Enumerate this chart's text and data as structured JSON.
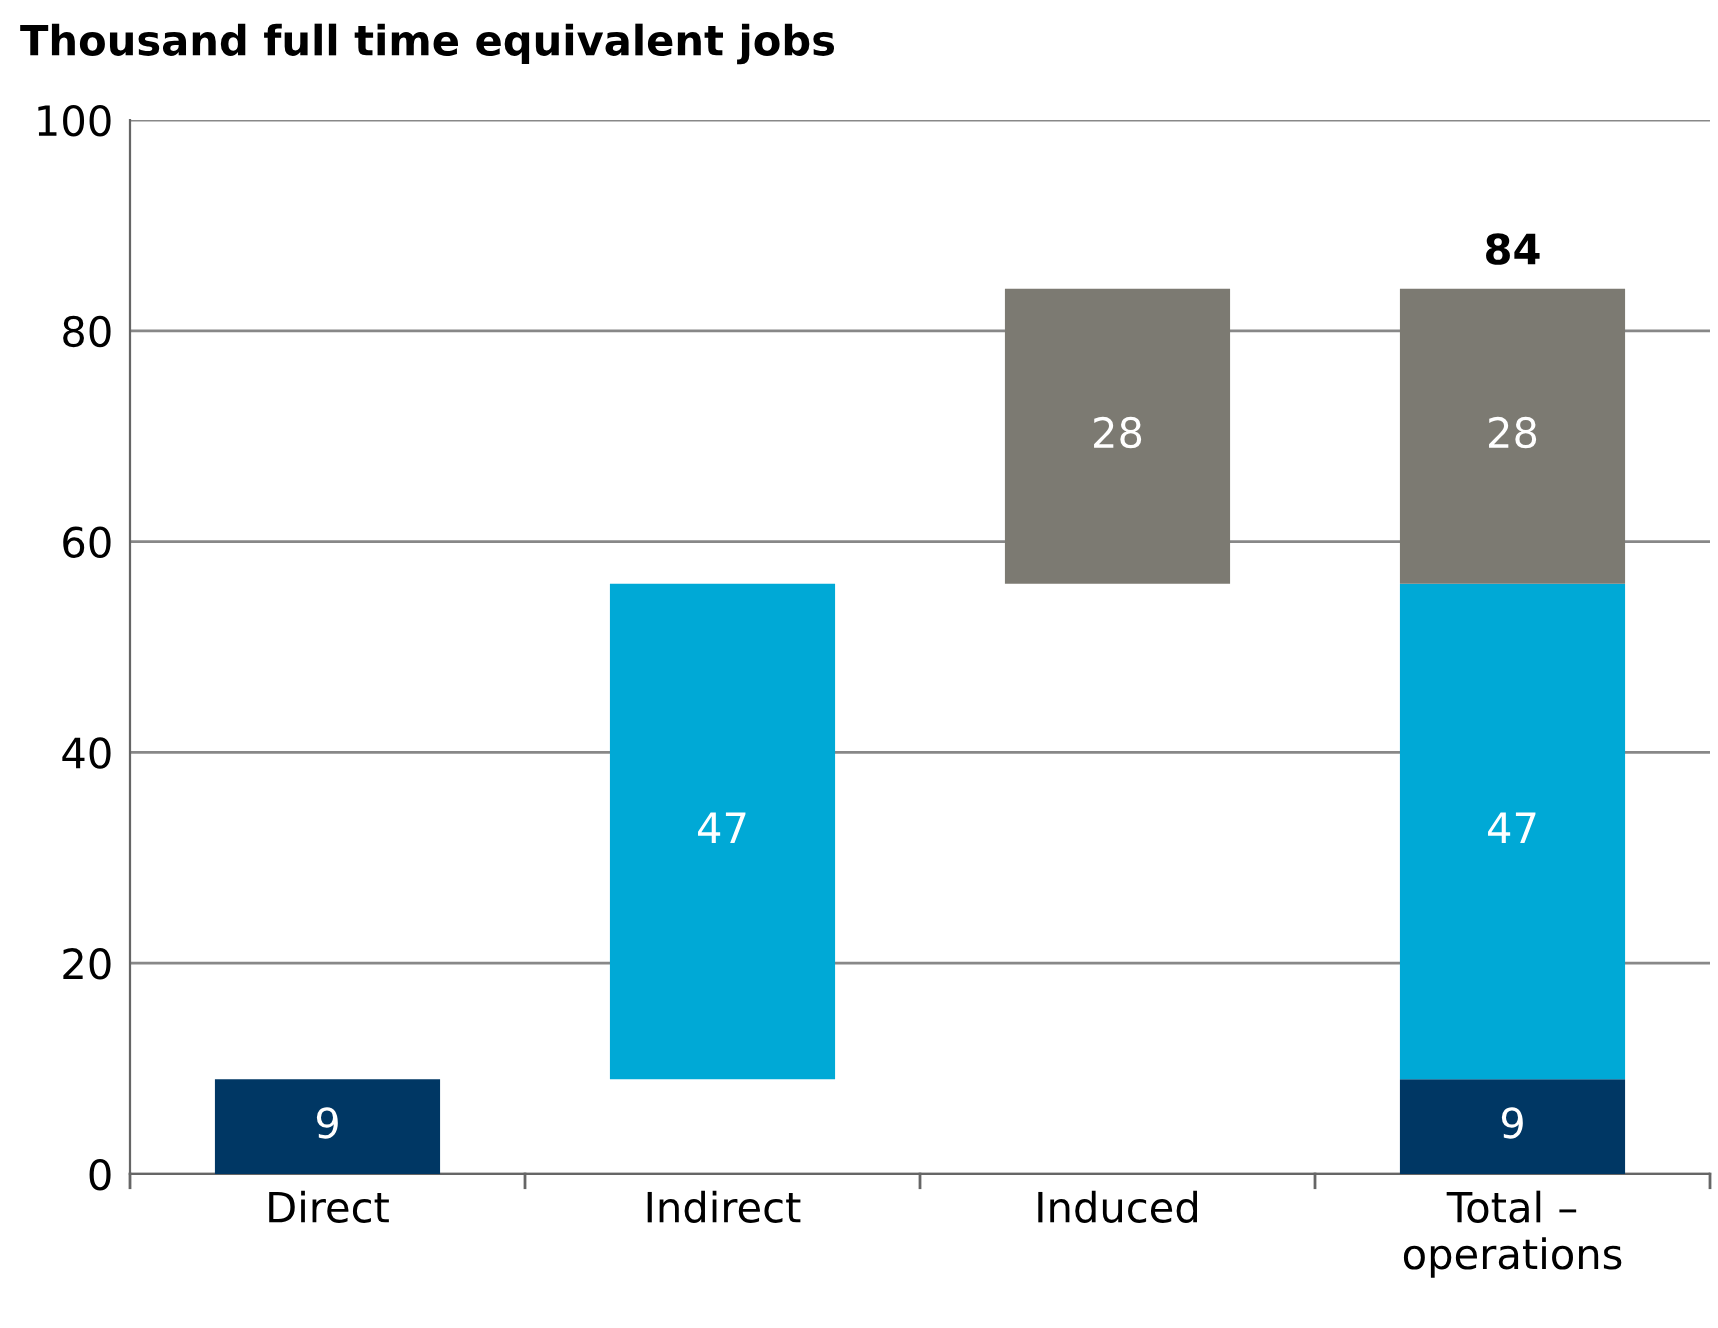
{
  "chart_data": {
    "type": "bar",
    "title": "Thousand full time equivalent jobs",
    "categories": [
      "Direct",
      "Indirect",
      "Induced",
      "Total –\noperations"
    ],
    "series": [
      {
        "color": "#003764",
        "values": [
          9,
          null,
          null,
          9
        ],
        "base": [
          0,
          null,
          null,
          0
        ]
      },
      {
        "color": "#00a9d6",
        "values": [
          null,
          47,
          null,
          47
        ],
        "base": [
          null,
          9,
          null,
          9
        ]
      },
      {
        "color": "#7c7a72",
        "values": [
          null,
          null,
          28,
          28
        ],
        "base": [
          null,
          null,
          56,
          56
        ]
      }
    ],
    "totals": [
      null,
      null,
      null,
      "84"
    ],
    "data_labels": true,
    "ylim": [
      0,
      100
    ],
    "yticks": [
      0,
      20,
      40,
      60,
      80,
      100
    ],
    "grid": "y",
    "legend": false
  }
}
